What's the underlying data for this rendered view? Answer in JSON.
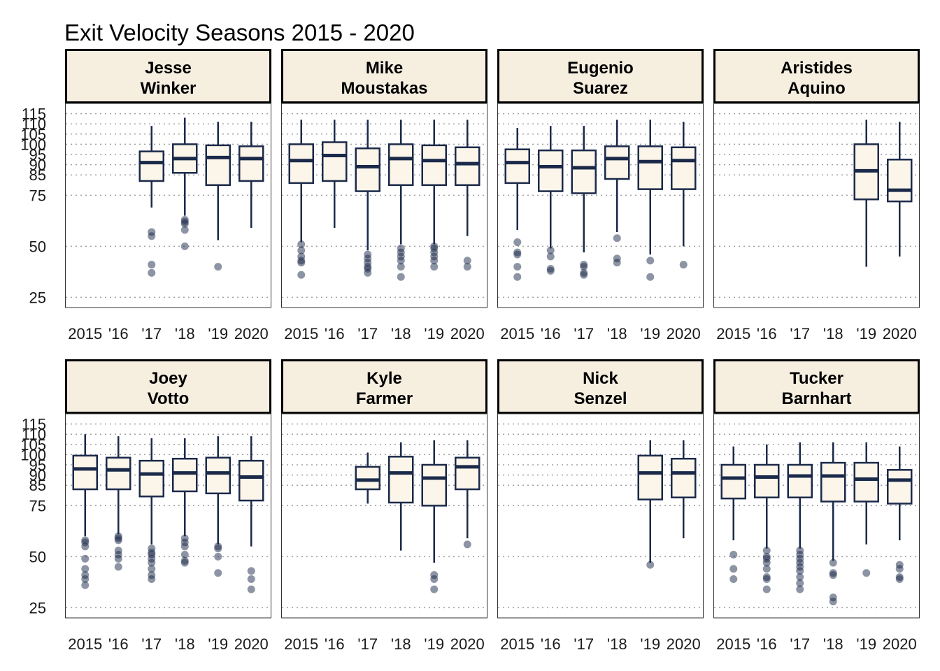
{
  "chart_data": {
    "type": "boxplot",
    "title": "Exit Velocity Seasons 2015 - 2020",
    "x_categories": [
      "2015",
      "'16",
      "'17",
      "'18",
      "'19",
      "2020"
    ],
    "y_ticks": [
      25,
      50,
      75,
      85,
      90,
      95,
      100,
      105,
      110,
      115
    ],
    "ylim": [
      20,
      120
    ],
    "grid": "horizontal dotted",
    "colors": {
      "box_stroke": "#1b2a4a",
      "box_fill": "#fcf5ea",
      "strip_fill": "#f6efe0",
      "outlier": "#1b2a4a",
      "grid": "#a0a0a0"
    },
    "panels": [
      {
        "name_lines": [
          "Jesse",
          "Winker"
        ],
        "boxes": [
          {
            "season": "'17",
            "whisker_low": 69,
            "q1": 82,
            "median": 91,
            "q3": 96.5,
            "whisker_high": 109,
            "outliers": [
              57,
              55,
              41,
              37
            ]
          },
          {
            "season": "'18",
            "whisker_low": 65,
            "q1": 86,
            "median": 93,
            "q3": 100,
            "whisker_high": 113,
            "outliers": [
              63,
              62,
              61,
              58,
              50
            ]
          },
          {
            "season": "'19",
            "whisker_low": 53,
            "q1": 80,
            "median": 93.5,
            "q3": 99.5,
            "whisker_high": 111,
            "outliers": [
              40
            ]
          },
          {
            "season": "2020",
            "whisker_low": 59,
            "q1": 82,
            "median": 93,
            "q3": 99,
            "whisker_high": 111,
            "outliers": []
          }
        ]
      },
      {
        "name_lines": [
          "Mike",
          "Moustakas"
        ],
        "boxes": [
          {
            "season": "2015",
            "whisker_low": 52,
            "q1": 81,
            "median": 92,
            "q3": 100,
            "whisker_high": 112,
            "outliers": [
              51,
              48,
              45,
              43,
              42,
              36
            ]
          },
          {
            "season": "'16",
            "whisker_low": 59,
            "q1": 82,
            "median": 94.5,
            "q3": 101,
            "whisker_high": 112,
            "outliers": []
          },
          {
            "season": "'17",
            "whisker_low": 48,
            "q1": 77,
            "median": 89,
            "q3": 98,
            "whisker_high": 112,
            "outliers": [
              46,
              44,
              42,
              40,
              39,
              37
            ]
          },
          {
            "season": "'18",
            "whisker_low": 51,
            "q1": 80,
            "median": 93,
            "q3": 100,
            "whisker_high": 112,
            "outliers": [
              49,
              47,
              45,
              43,
              40,
              35
            ]
          },
          {
            "season": "'19",
            "whisker_low": 51,
            "q1": 80,
            "median": 92,
            "q3": 99.5,
            "whisker_high": 112,
            "outliers": [
              50,
              49,
              47,
              45,
              43,
              40
            ]
          },
          {
            "season": "2020",
            "whisker_low": 55,
            "q1": 80,
            "median": 90.5,
            "q3": 98.5,
            "whisker_high": 112,
            "outliers": [
              43,
              40
            ]
          }
        ]
      },
      {
        "name_lines": [
          "Eugenio",
          "Suarez"
        ],
        "boxes": [
          {
            "season": "2015",
            "whisker_low": 58,
            "q1": 81,
            "median": 91,
            "q3": 97.5,
            "whisker_high": 108,
            "outliers": [
              52,
              47,
              46,
              40,
              35
            ]
          },
          {
            "season": "'16",
            "whisker_low": 49,
            "q1": 77,
            "median": 89,
            "q3": 97,
            "whisker_high": 109,
            "outliers": [
              48,
              45,
              39,
              38
            ]
          },
          {
            "season": "'17",
            "whisker_low": 47,
            "q1": 76,
            "median": 88.5,
            "q3": 97,
            "whisker_high": 109,
            "outliers": [
              41,
              40,
              37,
              36
            ]
          },
          {
            "season": "'18",
            "whisker_low": 57,
            "q1": 83,
            "median": 93,
            "q3": 99,
            "whisker_high": 112,
            "outliers": [
              54,
              44,
              42
            ]
          },
          {
            "season": "'19",
            "whisker_low": 46,
            "q1": 78,
            "median": 91.5,
            "q3": 99,
            "whisker_high": 112,
            "outliers": [
              43,
              35
            ]
          },
          {
            "season": "2020",
            "whisker_low": 50,
            "q1": 78,
            "median": 92,
            "q3": 98.5,
            "whisker_high": 111,
            "outliers": [
              41
            ]
          }
        ]
      },
      {
        "name_lines": [
          "Aristides",
          "Aquino"
        ],
        "boxes": [
          {
            "season": "'19",
            "whisker_low": 40,
            "q1": 73,
            "median": 87,
            "q3": 100,
            "whisker_high": 112,
            "outliers": []
          },
          {
            "season": "2020",
            "whisker_low": 45,
            "q1": 72,
            "median": 77.5,
            "q3": 92.5,
            "whisker_high": 111,
            "outliers": []
          }
        ]
      },
      {
        "name_lines": [
          "Joey",
          "Votto"
        ],
        "boxes": [
          {
            "season": "2015",
            "whisker_low": 60,
            "q1": 83,
            "median": 93,
            "q3": 99.5,
            "whisker_high": 110,
            "outliers": [
              58,
              57,
              55,
              49,
              44,
              41,
              39,
              36
            ]
          },
          {
            "season": "'16",
            "whisker_low": 61,
            "q1": 83,
            "median": 92.5,
            "q3": 98.5,
            "whisker_high": 109,
            "outliers": [
              60,
              59,
              58,
              53,
              51,
              49,
              45
            ]
          },
          {
            "season": "'17",
            "whisker_low": 56,
            "q1": 79.5,
            "median": 90.5,
            "q3": 97,
            "whisker_high": 108,
            "outliers": [
              54,
              52,
              51,
              49,
              47,
              44,
              41,
              39
            ]
          },
          {
            "season": "'18",
            "whisker_low": 60,
            "q1": 82,
            "median": 91,
            "q3": 98,
            "whisker_high": 108,
            "outliers": [
              59,
              57,
              55,
              51,
              48,
              47
            ]
          },
          {
            "season": "'19",
            "whisker_low": 56,
            "q1": 81,
            "median": 91,
            "q3": 98.5,
            "whisker_high": 109,
            "outliers": [
              55,
              54,
              50,
              42
            ]
          },
          {
            "season": "2020",
            "whisker_low": 55,
            "q1": 77.5,
            "median": 89,
            "q3": 97,
            "whisker_high": 109,
            "outliers": [
              43,
              39,
              34
            ]
          }
        ]
      },
      {
        "name_lines": [
          "Kyle",
          "Farmer"
        ],
        "boxes": [
          {
            "season": "'17",
            "whisker_low": 76,
            "q1": 83,
            "median": 87.5,
            "q3": 94,
            "whisker_high": 101,
            "outliers": []
          },
          {
            "season": "'18",
            "whisker_low": 53,
            "q1": 76.5,
            "median": 91,
            "q3": 99,
            "whisker_high": 106,
            "outliers": []
          },
          {
            "season": "'19",
            "whisker_low": 47,
            "q1": 75,
            "median": 88.5,
            "q3": 95,
            "whisker_high": 107,
            "outliers": [
              41,
              39,
              34
            ]
          },
          {
            "season": "2020",
            "whisker_low": 59,
            "q1": 83,
            "median": 94,
            "q3": 98.5,
            "whisker_high": 107,
            "outliers": [
              56
            ]
          }
        ]
      },
      {
        "name_lines": [
          "Nick",
          "Senzel"
        ],
        "boxes": [
          {
            "season": "'19",
            "whisker_low": 47,
            "q1": 78,
            "median": 91,
            "q3": 99.5,
            "whisker_high": 107,
            "outliers": [
              46
            ]
          },
          {
            "season": "2020",
            "whisker_low": 59,
            "q1": 79,
            "median": 91,
            "q3": 98,
            "whisker_high": 107,
            "outliers": []
          }
        ]
      },
      {
        "name_lines": [
          "Tucker",
          "Barnhart"
        ],
        "boxes": [
          {
            "season": "2015",
            "whisker_low": 58,
            "q1": 78.5,
            "median": 88.5,
            "q3": 95,
            "whisker_high": 104,
            "outliers": [
              51,
              44,
              39
            ]
          },
          {
            "season": "'16",
            "whisker_low": 54,
            "q1": 79,
            "median": 89,
            "q3": 95,
            "whisker_high": 105,
            "outliers": [
              53,
              50,
              49,
              47,
              44,
              40,
              39,
              34
            ]
          },
          {
            "season": "'17",
            "whisker_low": 54,
            "q1": 79,
            "median": 89.5,
            "q3": 95,
            "whisker_high": 106,
            "outliers": [
              53,
              51,
              49,
              47,
              45,
              43,
              40,
              37,
              34
            ]
          },
          {
            "season": "'18",
            "whisker_low": 48,
            "q1": 77,
            "median": 89.5,
            "q3": 96,
            "whisker_high": 106,
            "outliers": [
              47,
              42,
              41,
              30,
              28
            ]
          },
          {
            "season": "'19",
            "whisker_low": 56,
            "q1": 77,
            "median": 88,
            "q3": 96,
            "whisker_high": 106,
            "outliers": [
              42
            ]
          },
          {
            "season": "2020",
            "whisker_low": 58,
            "q1": 76,
            "median": 87.5,
            "q3": 92.5,
            "whisker_high": 104,
            "outliers": [
              46,
              44,
              40,
              39
            ]
          }
        ]
      }
    ]
  }
}
